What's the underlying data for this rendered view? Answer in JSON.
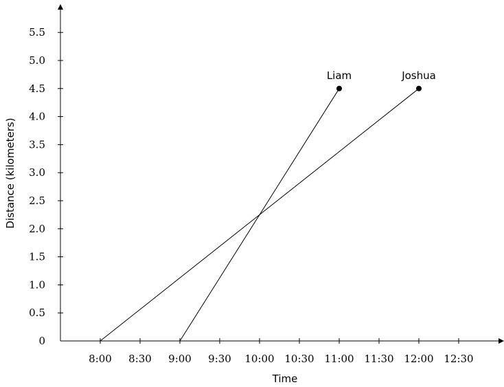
{
  "chart_data": {
    "type": "line",
    "title": "",
    "xlabel": "Time",
    "ylabel": "Distance (kilometers)",
    "x_ticks": [
      "8:00",
      "8:30",
      "9:00",
      "9:30",
      "10:00",
      "10:30",
      "11:00",
      "11:30",
      "12:00",
      "12:30"
    ],
    "y_ticks": [
      "0",
      "0.5",
      "1.0",
      "1.5",
      "2.0",
      "2.5",
      "3.0",
      "3.5",
      "4.0",
      "4.5",
      "5.0",
      "5.5"
    ],
    "grid": false,
    "series": [
      {
        "name": "Liam",
        "x": [
          "9:00",
          "11:00"
        ],
        "y": [
          0,
          4.5
        ],
        "end_marker": "dot"
      },
      {
        "name": "Joshua",
        "x": [
          "8:00",
          "12:00"
        ],
        "y": [
          0,
          4.5
        ],
        "end_marker": "dot"
      }
    ]
  }
}
